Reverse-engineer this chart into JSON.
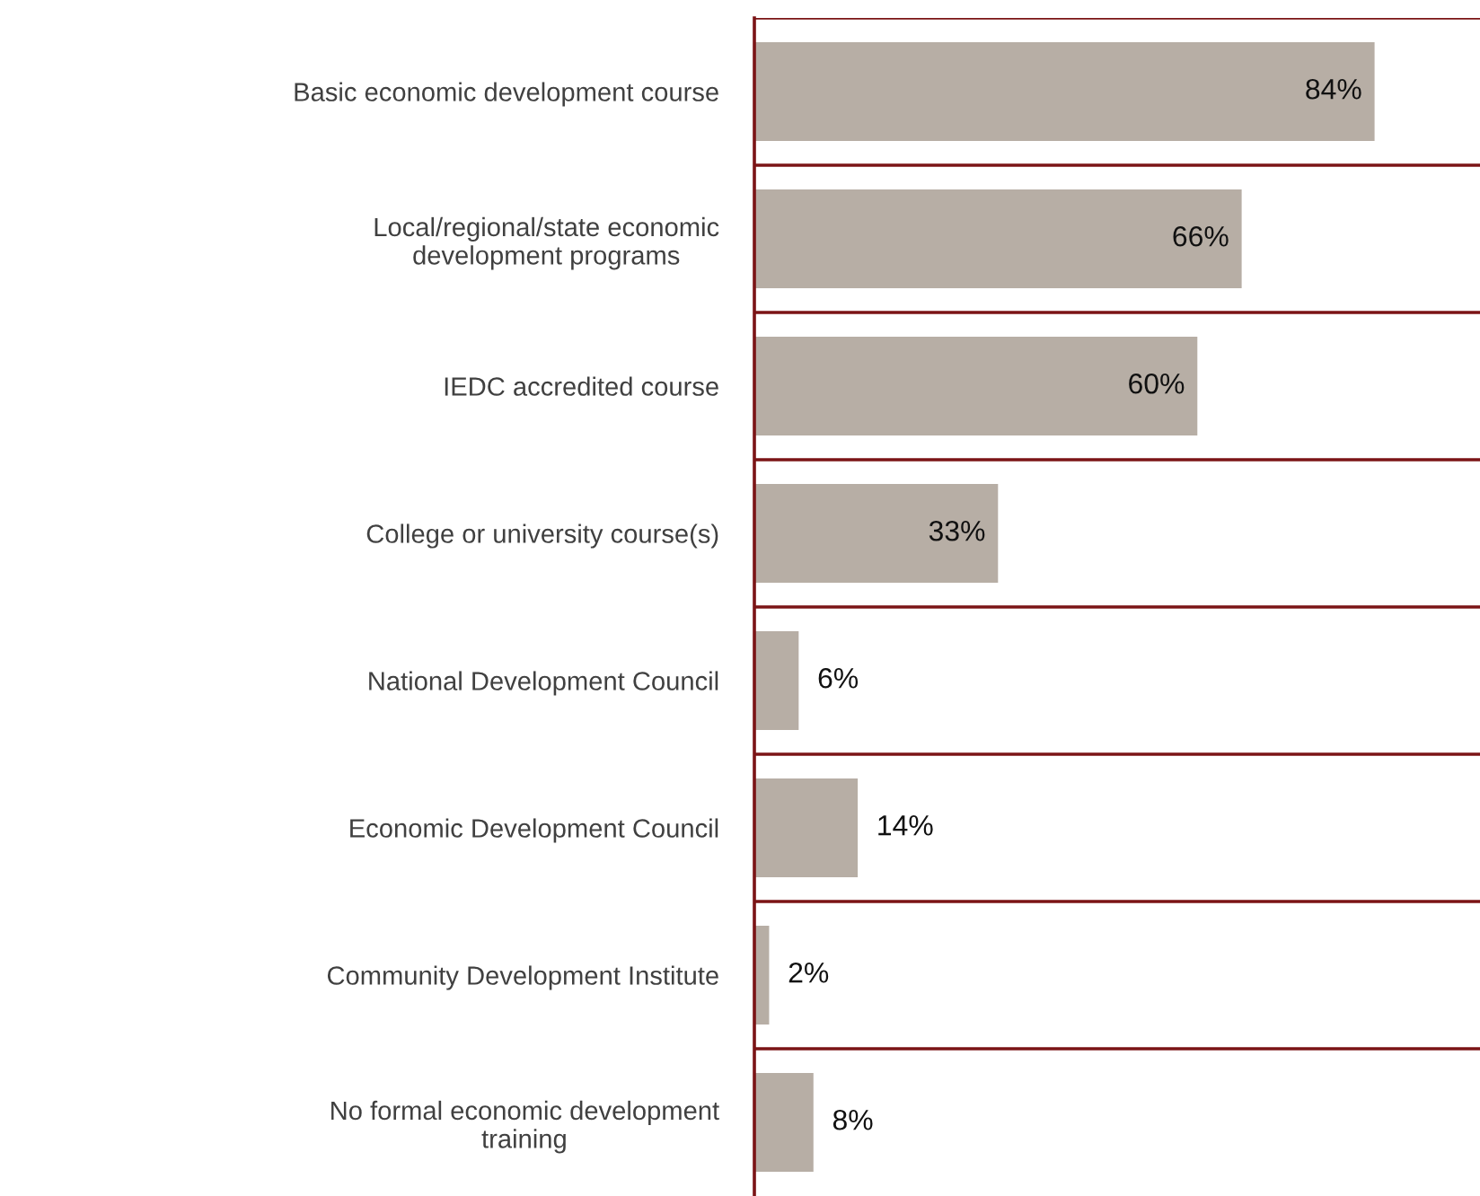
{
  "chart_data": {
    "type": "bar",
    "orientation": "horizontal",
    "categories": [
      "Basic economic development course",
      "Local/regional/state economic\ndevelopment programs",
      "IEDC accredited course",
      "College or university course(s)",
      "National Development Council",
      "Economic Development Council",
      "Community Development Institute",
      "No formal economic development\ntraining"
    ],
    "values": [
      84,
      66,
      60,
      33,
      6,
      14,
      2,
      8
    ],
    "value_labels": [
      "84%",
      "66%",
      "60%",
      "33%",
      "6%",
      "14%",
      "2%",
      "8%"
    ],
    "color": "#b7aea5",
    "grid": "y"
  }
}
